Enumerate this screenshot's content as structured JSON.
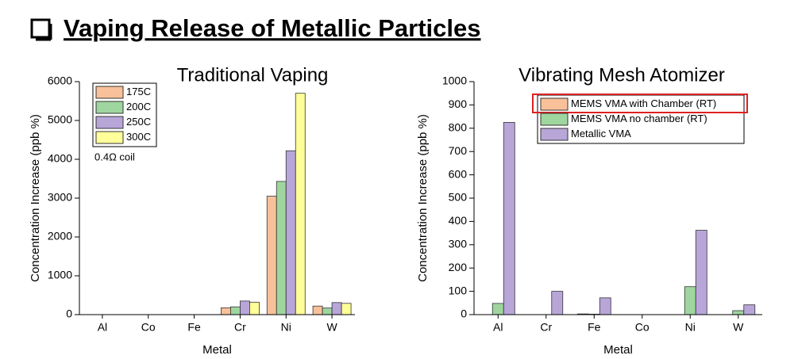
{
  "heading": "Vaping Release of Metallic Particles",
  "chart_data": [
    {
      "type": "bar",
      "title": "Traditional Vaping",
      "x_label": "Metal",
      "y_label": "Concentration Increase (ppb %)",
      "categories": [
        "Al",
        "Co",
        "Fe",
        "Cr",
        "Ni",
        "W"
      ],
      "series": [
        {
          "name": "175C",
          "color": "#f9c199",
          "values": [
            0,
            0,
            0,
            175,
            3050,
            220
          ]
        },
        {
          "name": "200C",
          "color": "#9fd69f",
          "values": [
            0,
            0,
            0,
            200,
            3430,
            170
          ]
        },
        {
          "name": "250C",
          "color": "#b8a6d9",
          "values": [
            0,
            0,
            0,
            350,
            4220,
            310
          ]
        },
        {
          "name": "300C",
          "color": "#ffff99",
          "values": [
            0,
            0,
            0,
            320,
            5700,
            290
          ]
        }
      ],
      "ylim": [
        0,
        6000
      ],
      "yticks": [
        0,
        1000,
        2000,
        3000,
        4000,
        5000,
        6000
      ],
      "legend": "upper-left",
      "annotation": "0.4Ω coil"
    },
    {
      "type": "bar",
      "title": "Vibrating Mesh Atomizer",
      "x_label": "Metal",
      "y_label": "Concentration Increase (ppb %)",
      "categories": [
        "Al",
        "Cr",
        "Fe",
        "Co",
        "Ni",
        "W"
      ],
      "series": [
        {
          "name": "MEMS VMA with Chamber (RT)",
          "color": "#f9c199",
          "values": [
            0,
            0,
            3,
            0,
            0,
            0
          ]
        },
        {
          "name": "MEMS VMA no chamber (RT)",
          "color": "#9fd69f",
          "values": [
            48,
            0,
            2,
            0,
            120,
            17
          ]
        },
        {
          "name": "Metallic VMA",
          "color": "#b8a6d9",
          "values": [
            825,
            100,
            72,
            0,
            362,
            42
          ]
        }
      ],
      "ylim": [
        0,
        1000
      ],
      "yticks": [
        0,
        100,
        200,
        300,
        400,
        500,
        600,
        700,
        800,
        900,
        1000
      ],
      "legend": "upper-right"
    }
  ]
}
